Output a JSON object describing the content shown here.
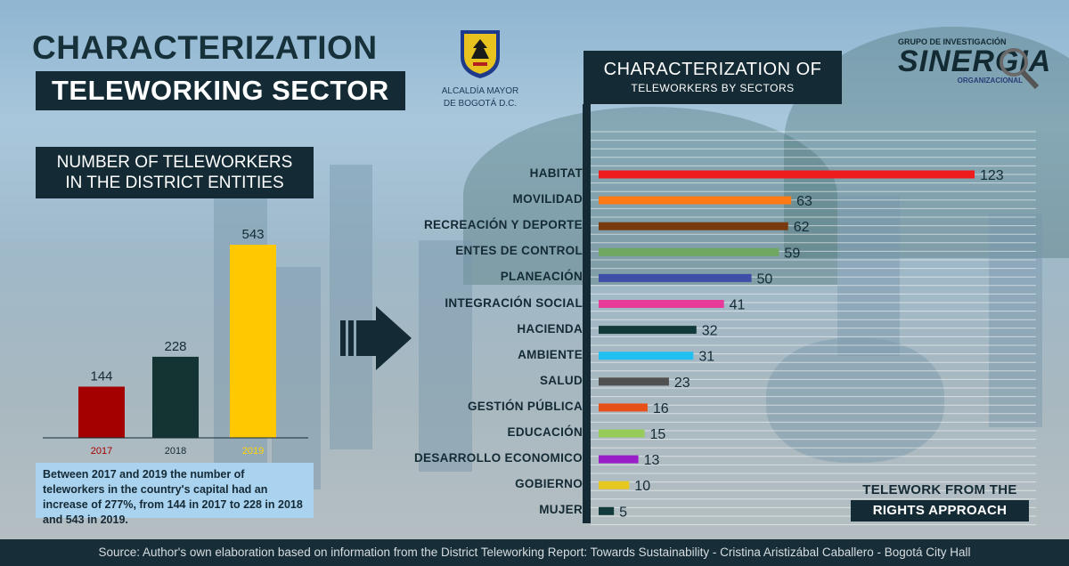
{
  "title": {
    "main": "CHARACTERIZATION",
    "sub": "TELEWORKING SECTOR"
  },
  "logos": {
    "alcaldia_line1": "ALCALDÍA MAYOR",
    "alcaldia_line2": "DE BOGOTÁ D.C.",
    "sinergia_top": "GRUPO DE INVESTIGACIÓN",
    "sinergia_main": "SINERGIA",
    "sinergia_bottom": "ORGANIZACIONAL"
  },
  "colors": {
    "dark": "#142b35",
    "bg": "#a9c7dc"
  },
  "chart_data": [
    {
      "type": "bar",
      "title": "NUMBER OF TELEWORKERS IN THE DISTRICT ENTITIES",
      "title_line1": "NUMBER OF TELEWORKERS",
      "title_line2": "IN THE DISTRICT ENTITIES",
      "categories": [
        "2017",
        "2018",
        "2019"
      ],
      "values": [
        144,
        228,
        543
      ],
      "colors": [
        "#a50000",
        "#143433",
        "#ffc800"
      ],
      "label_colors": [
        "#a50000",
        "#142b35",
        "#ffd500"
      ],
      "ylim": [
        0,
        600
      ],
      "caption": "Between 2017 and 2019 the number of teleworkers in the country's capital had an increase of 277%, from 144 in 2017 to 228 in 2018 and 543 in 2019."
    },
    {
      "type": "bar",
      "orientation": "horizontal",
      "title_line1": "CHARACTERIZATION OF",
      "title_line2": "TELEWORKERS BY SECTORS",
      "categories": [
        "HABITAT",
        "MOVILIDAD",
        "RECREACIÓN Y DEPORTE",
        "ENTES DE CONTROL",
        "PLANEACIÓN",
        "INTEGRACIÓN SOCIAL",
        "HACIENDA",
        "AMBIENTE",
        "SALUD",
        "GESTIÓN PÚBLICA",
        "EDUCACIÓN",
        "DESARROLLO ECONOMICO",
        "GOBIERNO",
        "MUJER"
      ],
      "values": [
        123,
        63,
        62,
        59,
        50,
        41,
        32,
        31,
        23,
        16,
        15,
        13,
        10,
        5
      ],
      "colors": [
        "#ee1c1c",
        "#ff7a14",
        "#7a3a10",
        "#6fa860",
        "#3f4fa8",
        "#e83a98",
        "#123a3a",
        "#22c0f0",
        "#505050",
        "#e8501a",
        "#98cc5a",
        "#9a1ec8",
        "#e6c81e",
        "#123a3a"
      ],
      "xlim": [
        0,
        123
      ]
    }
  ],
  "rights": {
    "line1": "TELEWORK FROM THE",
    "line2": "RIGHTS APPROACH"
  },
  "source": "Source: Author's own elaboration based on information from the District Teleworking Report: Towards Sustainability - Cristina Aristizábal Caballero - Bogotá City Hall"
}
